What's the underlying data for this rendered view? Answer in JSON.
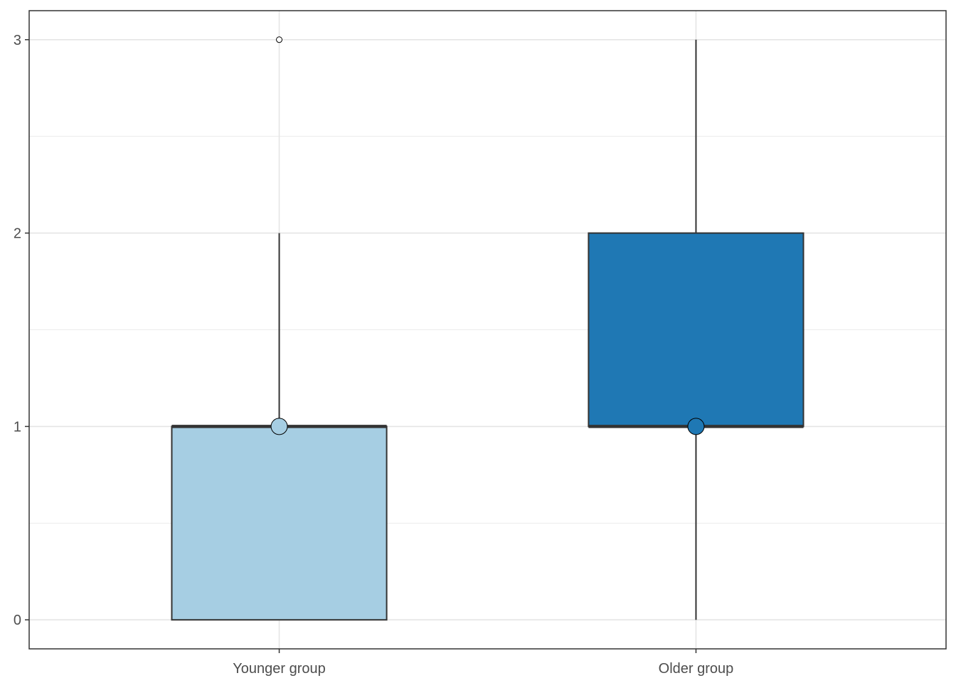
{
  "chart_data": {
    "type": "boxplot",
    "title": "",
    "xlabel": "",
    "ylabel": "",
    "categories": [
      "Younger group",
      "Older group"
    ],
    "ylim": [
      -0.15,
      3.15
    ],
    "y_ticks": [
      0,
      1,
      2,
      3
    ],
    "y_tick_labels": [
      "0",
      "1",
      "2",
      "3"
    ],
    "grid": true,
    "legend": "none",
    "boxes": [
      {
        "category": "Younger group",
        "q1": 0,
        "median": 1,
        "q3": 1,
        "whisker_low": 0,
        "whisker_high": 2,
        "mean": 1,
        "outliers": [
          3
        ],
        "fill": "#a6cee3"
      },
      {
        "category": "Older group",
        "q1": 1,
        "median": 1,
        "q3": 2,
        "whisker_low": 0,
        "whisker_high": 3,
        "mean": 1,
        "outliers": [],
        "fill": "#1f78b4"
      }
    ]
  }
}
